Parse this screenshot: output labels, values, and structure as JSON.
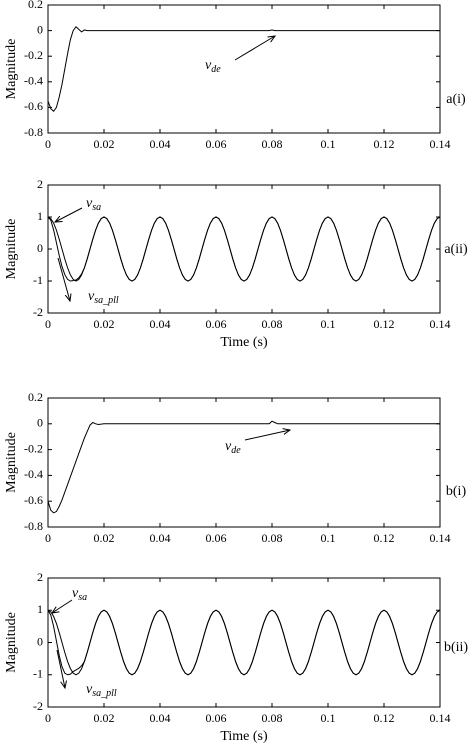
{
  "chart_data": [
    {
      "type": "line",
      "ylabel": "Magnitude",
      "panel_label": "a(i)",
      "x": [
        0,
        0.001,
        0.002,
        0.003,
        0.004,
        0.005,
        0.006,
        0.007,
        0.008,
        0.009,
        0.01,
        0.011,
        0.012,
        0.013,
        0.014,
        0.02,
        0.04,
        0.06,
        0.079,
        0.08,
        0.081,
        0.082,
        0.1,
        0.12,
        0.14
      ],
      "series": [
        {
          "color": "#000000",
          "values": [
            -0.55,
            -0.61,
            -0.63,
            -0.6,
            -0.52,
            -0.42,
            -0.3,
            -0.18,
            -0.07,
            0,
            0.03,
            0.01,
            -0.01,
            0.005,
            0,
            0,
            0,
            0,
            0,
            0.005,
            0,
            0,
            0,
            0,
            0
          ]
        }
      ],
      "xlim": [
        0,
        0.14
      ],
      "xticks": [
        0,
        0.02,
        0.04,
        0.06,
        0.08,
        0.1,
        0.12,
        0.14
      ],
      "ylim": [
        -0.8,
        0.2
      ],
      "yticks": [
        0.2,
        0,
        -0.2,
        -0.4,
        -0.6,
        -0.8
      ],
      "grid": false,
      "annotations": [
        {
          "text": "v",
          "subscript": "de"
        }
      ]
    },
    {
      "type": "line",
      "ylabel": "Magnitude",
      "xlabel": "Time (s)",
      "panel_label": "a(ii)",
      "x": [
        0,
        0.001,
        0.002,
        0.003,
        0.004,
        0.005,
        0.006,
        0.007,
        0.008,
        0.009,
        0.01,
        0.011,
        0.012,
        0.013,
        0.014,
        0.015,
        0.016,
        0.017,
        0.018,
        0.019,
        0.02,
        0.021,
        0.022,
        0.023,
        0.024,
        0.025,
        0.026,
        0.027,
        0.028,
        0.029,
        0.03,
        0.031,
        0.032,
        0.033,
        0.034,
        0.035,
        0.036,
        0.037,
        0.038,
        0.039,
        0.04,
        0.041,
        0.042,
        0.043,
        0.044,
        0.045,
        0.046,
        0.047,
        0.048,
        0.049,
        0.05,
        0.051,
        0.052,
        0.053,
        0.054,
        0.055,
        0.056,
        0.057,
        0.058,
        0.059,
        0.06,
        0.061,
        0.062,
        0.063,
        0.064,
        0.065,
        0.066,
        0.067,
        0.068,
        0.069,
        0.07,
        0.071,
        0.072,
        0.073,
        0.074,
        0.075,
        0.076,
        0.077,
        0.078,
        0.079,
        0.08,
        0.081,
        0.082,
        0.083,
        0.084,
        0.085,
        0.086,
        0.087,
        0.088,
        0.089,
        0.09,
        0.091,
        0.092,
        0.093,
        0.094,
        0.095,
        0.096,
        0.097,
        0.098,
        0.099,
        0.1,
        0.101,
        0.102,
        0.103,
        0.104,
        0.105,
        0.106,
        0.107,
        0.108,
        0.109,
        0.11,
        0.111,
        0.112,
        0.113,
        0.114,
        0.115,
        0.116,
        0.117,
        0.118,
        0.119,
        0.12,
        0.121,
        0.122,
        0.123,
        0.124,
        0.125,
        0.126,
        0.127,
        0.128,
        0.129,
        0.13,
        0.131,
        0.132,
        0.133,
        0.134,
        0.135,
        0.136,
        0.137,
        0.138,
        0.139,
        0.14
      ],
      "series": [
        {
          "color": "#000000",
          "values": [
            1,
            0.95,
            0.81,
            0.59,
            0.31,
            0,
            -0.31,
            -0.59,
            -0.81,
            -0.95,
            -1,
            -0.95,
            -0.81,
            -0.59,
            -0.31,
            0,
            0.31,
            0.59,
            0.81,
            0.95,
            1,
            0.95,
            0.81,
            0.59,
            0.31,
            0,
            -0.31,
            -0.59,
            -0.81,
            -0.95,
            -1,
            -0.95,
            -0.81,
            -0.59,
            -0.31,
            0,
            0.31,
            0.59,
            0.81,
            0.95,
            1,
            0.95,
            0.81,
            0.59,
            0.31,
            0,
            -0.31,
            -0.59,
            -0.81,
            -0.95,
            -1,
            -0.95,
            -0.81,
            -0.59,
            -0.31,
            0,
            0.31,
            0.59,
            0.81,
            0.95,
            1,
            0.95,
            0.81,
            0.59,
            0.31,
            0,
            -0.31,
            -0.59,
            -0.81,
            -0.95,
            -1,
            -0.95,
            -0.81,
            -0.59,
            -0.31,
            0,
            0.31,
            0.59,
            0.81,
            0.95,
            1,
            0.95,
            0.81,
            0.59,
            0.31,
            0,
            -0.31,
            -0.59,
            -0.81,
            -0.95,
            -1,
            -0.95,
            -0.81,
            -0.59,
            -0.31,
            0,
            0.31,
            0.59,
            0.81,
            0.95,
            1,
            0.95,
            0.81,
            0.59,
            0.31,
            0,
            -0.31,
            -0.59,
            -0.81,
            -0.95,
            -1,
            -0.95,
            -0.81,
            -0.59,
            -0.31,
            0,
            0.31,
            0.59,
            0.81,
            0.95,
            1,
            0.95,
            0.81,
            0.59,
            0.31,
            0,
            -0.31,
            -0.59,
            -0.81,
            -0.95,
            -1,
            -0.95,
            -0.81,
            -0.59,
            -0.31,
            0,
            0.31,
            0.59,
            0.81,
            0.95,
            1
          ]
        },
        {
          "color": "#000000",
          "values": [
            1,
            0.9,
            0.6,
            0.2,
            -0.2,
            -0.55,
            -0.8,
            -0.95,
            -1,
            -0.99,
            -0.97,
            -0.9,
            -0.78,
            -0.59,
            -0.31,
            0,
            0.31,
            0.59,
            0.81,
            0.95,
            1,
            0.95,
            0.81,
            0.59,
            0.31,
            0,
            -0.31,
            -0.59,
            -0.81,
            -0.95,
            -1,
            -0.95,
            -0.81,
            -0.59,
            -0.31,
            0,
            0.31,
            0.59,
            0.81,
            0.95,
            1,
            0.95,
            0.81,
            0.59,
            0.31,
            0,
            -0.31,
            -0.59,
            -0.81,
            -0.95,
            -1,
            -0.95,
            -0.81,
            -0.59,
            -0.31,
            0,
            0.31,
            0.59,
            0.81,
            0.95,
            1,
            0.95,
            0.81,
            0.59,
            0.31,
            0,
            -0.31,
            -0.59,
            -0.81,
            -0.95,
            -1,
            -0.95,
            -0.81,
            -0.59,
            -0.31,
            0,
            0.31,
            0.59,
            0.81,
            0.95,
            1,
            0.95,
            0.81,
            0.59,
            0.31,
            0,
            -0.31,
            -0.59,
            -0.81,
            -0.95,
            -1,
            -0.95,
            -0.81,
            -0.59,
            -0.31,
            0,
            0.31,
            0.59,
            0.81,
            0.95,
            1,
            0.95,
            0.81,
            0.59,
            0.31,
            0,
            -0.31,
            -0.59,
            -0.81,
            -0.95,
            -1,
            -0.95,
            -0.81,
            -0.59,
            -0.31,
            0,
            0.31,
            0.59,
            0.81,
            0.95,
            1,
            0.95,
            0.81,
            0.59,
            0.31,
            0,
            -0.31,
            -0.59,
            -0.81,
            -0.95,
            -1,
            -0.95,
            -0.81,
            -0.59,
            -0.31,
            0,
            0.31,
            0.59,
            0.81,
            0.95,
            1
          ]
        }
      ],
      "xlim": [
        0,
        0.14
      ],
      "xticks": [
        0,
        0.02,
        0.04,
        0.06,
        0.08,
        0.1,
        0.12,
        0.14
      ],
      "ylim": [
        -2,
        2
      ],
      "yticks": [
        2,
        1,
        0,
        -1,
        -2
      ],
      "grid": false,
      "annotations": [
        {
          "text": "v",
          "subscript": "sa"
        },
        {
          "text": "v",
          "subscript": "sa_pll"
        }
      ]
    },
    {
      "type": "line",
      "ylabel": "Magnitude",
      "panel_label": "b(i)",
      "x": [
        0,
        0.001,
        0.002,
        0.003,
        0.004,
        0.005,
        0.006,
        0.007,
        0.008,
        0.009,
        0.01,
        0.011,
        0.012,
        0.013,
        0.014,
        0.015,
        0.016,
        0.017,
        0.018,
        0.02,
        0.04,
        0.06,
        0.079,
        0.08,
        0.081,
        0.082,
        0.1,
        0.12,
        0.14
      ],
      "series": [
        {
          "color": "#000000",
          "values": [
            -0.6,
            -0.67,
            -0.69,
            -0.68,
            -0.64,
            -0.59,
            -0.53,
            -0.47,
            -0.41,
            -0.35,
            -0.29,
            -0.23,
            -0.17,
            -0.11,
            -0.06,
            -0.01,
            0.01,
            0,
            -0.005,
            0,
            0,
            0,
            0,
            0.02,
            0.01,
            0,
            0,
            0,
            0
          ]
        }
      ],
      "xlim": [
        0,
        0.14
      ],
      "xticks": [
        0,
        0.02,
        0.04,
        0.06,
        0.08,
        0.1,
        0.12,
        0.14
      ],
      "ylim": [
        -0.8,
        0.2
      ],
      "yticks": [
        0.2,
        0,
        -0.2,
        -0.4,
        -0.6,
        -0.8
      ],
      "grid": false,
      "annotations": [
        {
          "text": "v",
          "subscript": "de"
        }
      ]
    },
    {
      "type": "line",
      "ylabel": "Magnitude",
      "xlabel": "Time (s)",
      "panel_label": "b(ii)",
      "x": [
        0,
        0.001,
        0.002,
        0.003,
        0.004,
        0.005,
        0.006,
        0.007,
        0.008,
        0.009,
        0.01,
        0.011,
        0.012,
        0.013,
        0.014,
        0.015,
        0.016,
        0.017,
        0.018,
        0.019,
        0.02,
        0.021,
        0.022,
        0.023,
        0.024,
        0.025,
        0.026,
        0.027,
        0.028,
        0.029,
        0.03,
        0.031,
        0.032,
        0.033,
        0.034,
        0.035,
        0.036,
        0.037,
        0.038,
        0.039,
        0.04,
        0.041,
        0.042,
        0.043,
        0.044,
        0.045,
        0.046,
        0.047,
        0.048,
        0.049,
        0.05,
        0.051,
        0.052,
        0.053,
        0.054,
        0.055,
        0.056,
        0.057,
        0.058,
        0.059,
        0.06,
        0.061,
        0.062,
        0.063,
        0.064,
        0.065,
        0.066,
        0.067,
        0.068,
        0.069,
        0.07,
        0.071,
        0.072,
        0.073,
        0.074,
        0.075,
        0.076,
        0.077,
        0.078,
        0.079,
        0.08,
        0.081,
        0.082,
        0.083,
        0.084,
        0.085,
        0.086,
        0.087,
        0.088,
        0.089,
        0.09,
        0.091,
        0.092,
        0.093,
        0.094,
        0.095,
        0.096,
        0.097,
        0.098,
        0.099,
        0.1,
        0.101,
        0.102,
        0.103,
        0.104,
        0.105,
        0.106,
        0.107,
        0.108,
        0.109,
        0.11,
        0.111,
        0.112,
        0.113,
        0.114,
        0.115,
        0.116,
        0.117,
        0.118,
        0.119,
        0.12,
        0.121,
        0.122,
        0.123,
        0.124,
        0.125,
        0.126,
        0.127,
        0.128,
        0.129,
        0.13,
        0.131,
        0.132,
        0.133,
        0.134,
        0.135,
        0.136,
        0.137,
        0.138,
        0.139,
        0.14
      ],
      "series": [
        {
          "color": "#000000",
          "values": [
            1,
            0.95,
            0.81,
            0.59,
            0.31,
            0,
            -0.31,
            -0.59,
            -0.81,
            -0.95,
            -1,
            -0.95,
            -0.81,
            -0.59,
            -0.31,
            0,
            0.31,
            0.59,
            0.81,
            0.95,
            1,
            0.95,
            0.81,
            0.59,
            0.31,
            0,
            -0.31,
            -0.59,
            -0.81,
            -0.95,
            -1,
            -0.95,
            -0.81,
            -0.59,
            -0.31,
            0,
            0.31,
            0.59,
            0.81,
            0.95,
            1,
            0.95,
            0.81,
            0.59,
            0.31,
            0,
            -0.31,
            -0.59,
            -0.81,
            -0.95,
            -1,
            -0.95,
            -0.81,
            -0.59,
            -0.31,
            0,
            0.31,
            0.59,
            0.81,
            0.95,
            1,
            0.95,
            0.81,
            0.59,
            0.31,
            0,
            -0.31,
            -0.59,
            -0.81,
            -0.95,
            -1,
            -0.95,
            -0.81,
            -0.59,
            -0.31,
            0,
            0.31,
            0.59,
            0.81,
            0.95,
            1,
            0.95,
            0.81,
            0.59,
            0.31,
            0,
            -0.31,
            -0.59,
            -0.81,
            -0.95,
            -1,
            -0.95,
            -0.81,
            -0.59,
            -0.31,
            0,
            0.31,
            0.59,
            0.81,
            0.95,
            1,
            0.95,
            0.81,
            0.59,
            0.31,
            0,
            -0.31,
            -0.59,
            -0.81,
            -0.95,
            -1,
            -0.95,
            -0.81,
            -0.59,
            -0.31,
            0,
            0.31,
            0.59,
            0.81,
            0.95,
            1,
            0.95,
            0.81,
            0.59,
            0.31,
            0,
            -0.31,
            -0.59,
            -0.81,
            -0.95,
            -1,
            -0.95,
            -0.81,
            -0.59,
            -0.31,
            0,
            0.31,
            0.59,
            0.81,
            0.95,
            1
          ]
        },
        {
          "color": "#000000",
          "values": [
            1,
            0.85,
            0.5,
            0.05,
            -0.4,
            -0.75,
            -0.95,
            -1,
            -0.98,
            -0.9,
            -0.85,
            -0.8,
            -0.72,
            -0.59,
            -0.31,
            0,
            0.31,
            0.59,
            0.81,
            0.95,
            1,
            0.95,
            0.81,
            0.59,
            0.31,
            0,
            -0.31,
            -0.59,
            -0.81,
            -0.95,
            -1,
            -0.95,
            -0.81,
            -0.59,
            -0.31,
            0,
            0.31,
            0.59,
            0.81,
            0.95,
            1,
            0.95,
            0.81,
            0.59,
            0.31,
            0,
            -0.31,
            -0.59,
            -0.81,
            -0.95,
            -1,
            -0.95,
            -0.81,
            -0.59,
            -0.31,
            0,
            0.31,
            0.59,
            0.81,
            0.95,
            1,
            0.95,
            0.81,
            0.59,
            0.31,
            0,
            -0.31,
            -0.59,
            -0.81,
            -0.95,
            -1,
            -0.95,
            -0.81,
            -0.59,
            -0.31,
            0,
            0.31,
            0.59,
            0.81,
            0.95,
            1,
            0.95,
            0.81,
            0.59,
            0.31,
            0,
            -0.31,
            -0.59,
            -0.81,
            -0.95,
            -1,
            -0.95,
            -0.81,
            -0.59,
            -0.31,
            0,
            0.31,
            0.59,
            0.81,
            0.95,
            1,
            0.95,
            0.81,
            0.59,
            0.31,
            0,
            -0.31,
            -0.59,
            -0.81,
            -0.95,
            -1,
            -0.95,
            -0.81,
            -0.59,
            -0.31,
            0,
            0.31,
            0.59,
            0.81,
            0.95,
            1,
            0.95,
            0.81,
            0.59,
            0.31,
            0,
            -0.31,
            -0.59,
            -0.81,
            -0.95,
            -1,
            -0.95,
            -0.81,
            -0.59,
            -0.31,
            0,
            0.31,
            0.59,
            0.81,
            0.95,
            1
          ]
        }
      ],
      "xlim": [
        0,
        0.14
      ],
      "xticks": [
        0,
        0.02,
        0.04,
        0.06,
        0.08,
        0.1,
        0.12,
        0.14
      ],
      "ylim": [
        -2,
        2
      ],
      "yticks": [
        2,
        1,
        0,
        -1,
        -2
      ],
      "grid": false,
      "annotations": [
        {
          "text": "v",
          "subscript": "sa"
        },
        {
          "text": "v",
          "subscript": "sa_pll"
        }
      ]
    }
  ]
}
